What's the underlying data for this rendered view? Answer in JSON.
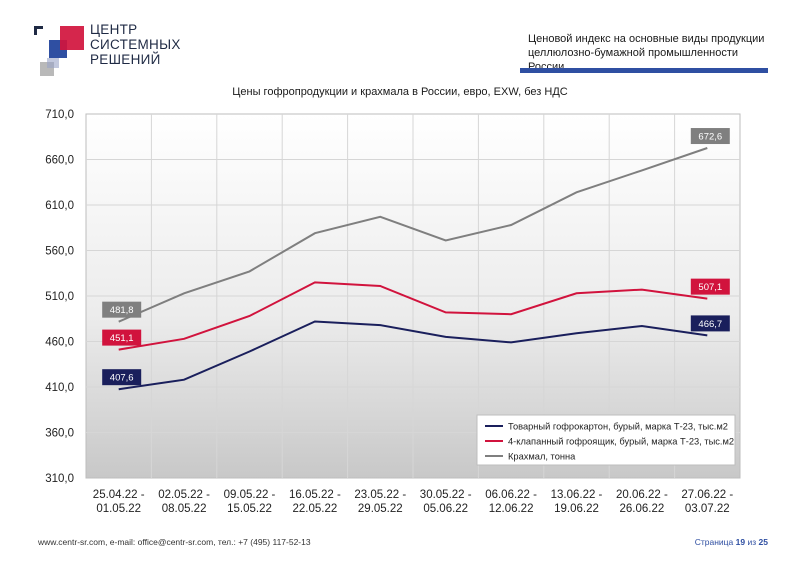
{
  "brand": {
    "line1": "ЦЕНТР",
    "line2": "СИСТЕМНЫХ",
    "line3": "РЕШЕНИЙ"
  },
  "header": {
    "line1": "Ценовой индекс на основные виды продукции",
    "line2": "целлюлозно-бумажной промышленности России"
  },
  "colors": {
    "accent": "#2f4fa2",
    "series1": "#1a1f5c",
    "series2": "#d1133d",
    "series3": "#7f7f7f"
  },
  "chart_data": {
    "type": "line",
    "title": "Цены гофропродукции и крахмала в России, евро, EXW, без НДС",
    "xlabel": "",
    "ylabel": "",
    "ylim": [
      310,
      710
    ],
    "yticks": [
      "310,0",
      "360,0",
      "410,0",
      "460,0",
      "510,0",
      "560,0",
      "610,0",
      "660,0",
      "710,0"
    ],
    "grid": true,
    "legend_position": "bottom-right",
    "categories": [
      [
        "25.04.22 -",
        "01.05.22"
      ],
      [
        "02.05.22 -",
        "08.05.22"
      ],
      [
        "09.05.22 -",
        "15.05.22"
      ],
      [
        "16.05.22 -",
        "22.05.22"
      ],
      [
        "23.05.22 -",
        "29.05.22"
      ],
      [
        "30.05.22 -",
        "05.06.22"
      ],
      [
        "06.06.22 -",
        "12.06.22"
      ],
      [
        "13.06.22 -",
        "19.06.22"
      ],
      [
        "20.06.22 -",
        "26.06.22"
      ],
      [
        "27.06.22 -",
        "03.07.22"
      ]
    ],
    "series": [
      {
        "name": "Товарный гофрокартон, бурый, марка Т-23, тыс.м2",
        "color": "#1a1f5c",
        "values": [
          407.6,
          418,
          449,
          482,
          478,
          465,
          459,
          469,
          477,
          466.7
        ],
        "labels": {
          "first": "407,6",
          "last": "466,7"
        }
      },
      {
        "name": "4-клапанный гофроящик, бурый, марка Т-23, тыс.м2",
        "color": "#d1133d",
        "values": [
          451.1,
          463,
          488,
          525,
          521,
          492,
          490,
          513,
          517,
          507.1
        ],
        "labels": {
          "first": "451,1",
          "last": "507,1"
        }
      },
      {
        "name": "Крахмал, тонна",
        "color": "#7f7f7f",
        "values": [
          481.8,
          513,
          537,
          579,
          597,
          571,
          588,
          624,
          648,
          672.6
        ],
        "labels": {
          "first": "481,8",
          "last": "672,6"
        }
      }
    ]
  },
  "footer": {
    "contacts": "www.centr-sr.com, e-mail: office@centr-sr.com, тел.: +7 (495) 117-52-13",
    "page_word": "Страница",
    "page_num": "19",
    "of_word": "из",
    "page_total": "25"
  }
}
